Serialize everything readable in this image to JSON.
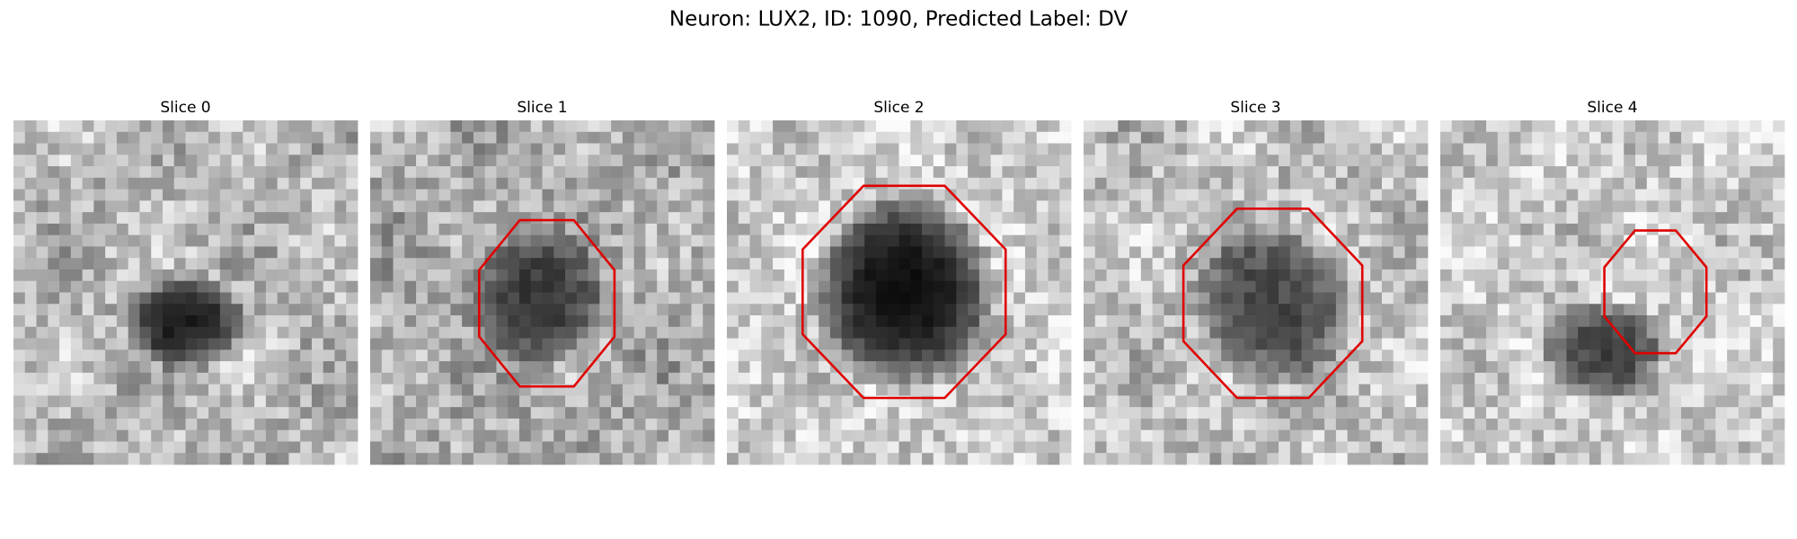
{
  "header": {
    "title": "Neuron: LUX2, ID: 1090, Predicted Label: DV"
  },
  "panels": [
    {
      "title": "Slice 0"
    },
    {
      "title": "Slice 1"
    },
    {
      "title": "Slice 2"
    },
    {
      "title": "Slice 3"
    },
    {
      "title": "Slice 4"
    }
  ]
}
